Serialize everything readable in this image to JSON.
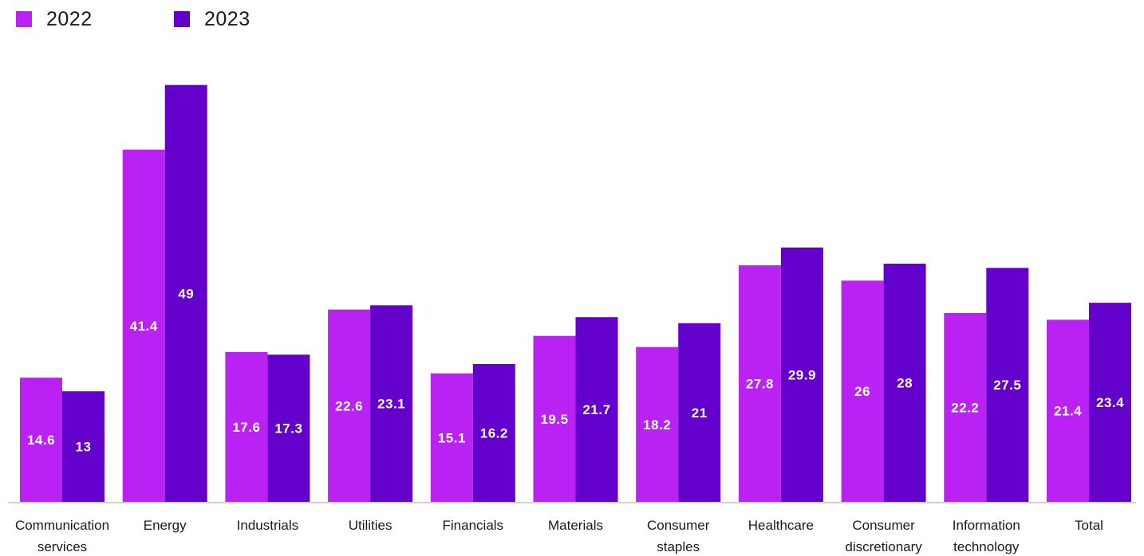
{
  "colors": {
    "series_2022": "#b922f2",
    "series_2023": "#6300cc",
    "axis": "#d0d0d0",
    "text": "#1a1a1a",
    "bar_label": "#ffffff"
  },
  "legend": {
    "items": [
      {
        "label": "2022"
      },
      {
        "label": "2023"
      }
    ]
  },
  "chart_data": {
    "type": "bar",
    "title": "",
    "xlabel": "",
    "ylabel": "",
    "ylim": [
      0,
      55
    ],
    "grid": false,
    "legend_position": "top-left",
    "categories": [
      [
        "Communication",
        "services"
      ],
      [
        "Energy"
      ],
      [
        "Industrials"
      ],
      [
        "Utilities"
      ],
      [
        "Financials"
      ],
      [
        "Materials"
      ],
      [
        "Consumer",
        "staples"
      ],
      [
        "Healthcare"
      ],
      [
        "Consumer",
        "discretionary"
      ],
      [
        "Information",
        "technology"
      ],
      [
        "Total"
      ]
    ],
    "series": [
      {
        "name": "2022",
        "values": [
          14.6,
          41.4,
          17.6,
          22.6,
          15.1,
          19.5,
          18.2,
          27.8,
          26,
          22.2,
          21.4
        ],
        "labels": [
          "14.6",
          "41.4",
          "17.6",
          "22.6",
          "15.1",
          "19.5",
          "18.2",
          "27.8",
          "26",
          "22.2",
          "21.4"
        ]
      },
      {
        "name": "2023",
        "values": [
          13,
          49,
          17.3,
          23.1,
          16.2,
          21.7,
          21,
          29.9,
          28,
          27.5,
          23.4
        ],
        "labels": [
          "13",
          "49",
          "17.3",
          "23.1",
          "16.2",
          "21.7",
          "21",
          "29.9",
          "28",
          "27.5",
          "23.4"
        ]
      }
    ]
  }
}
